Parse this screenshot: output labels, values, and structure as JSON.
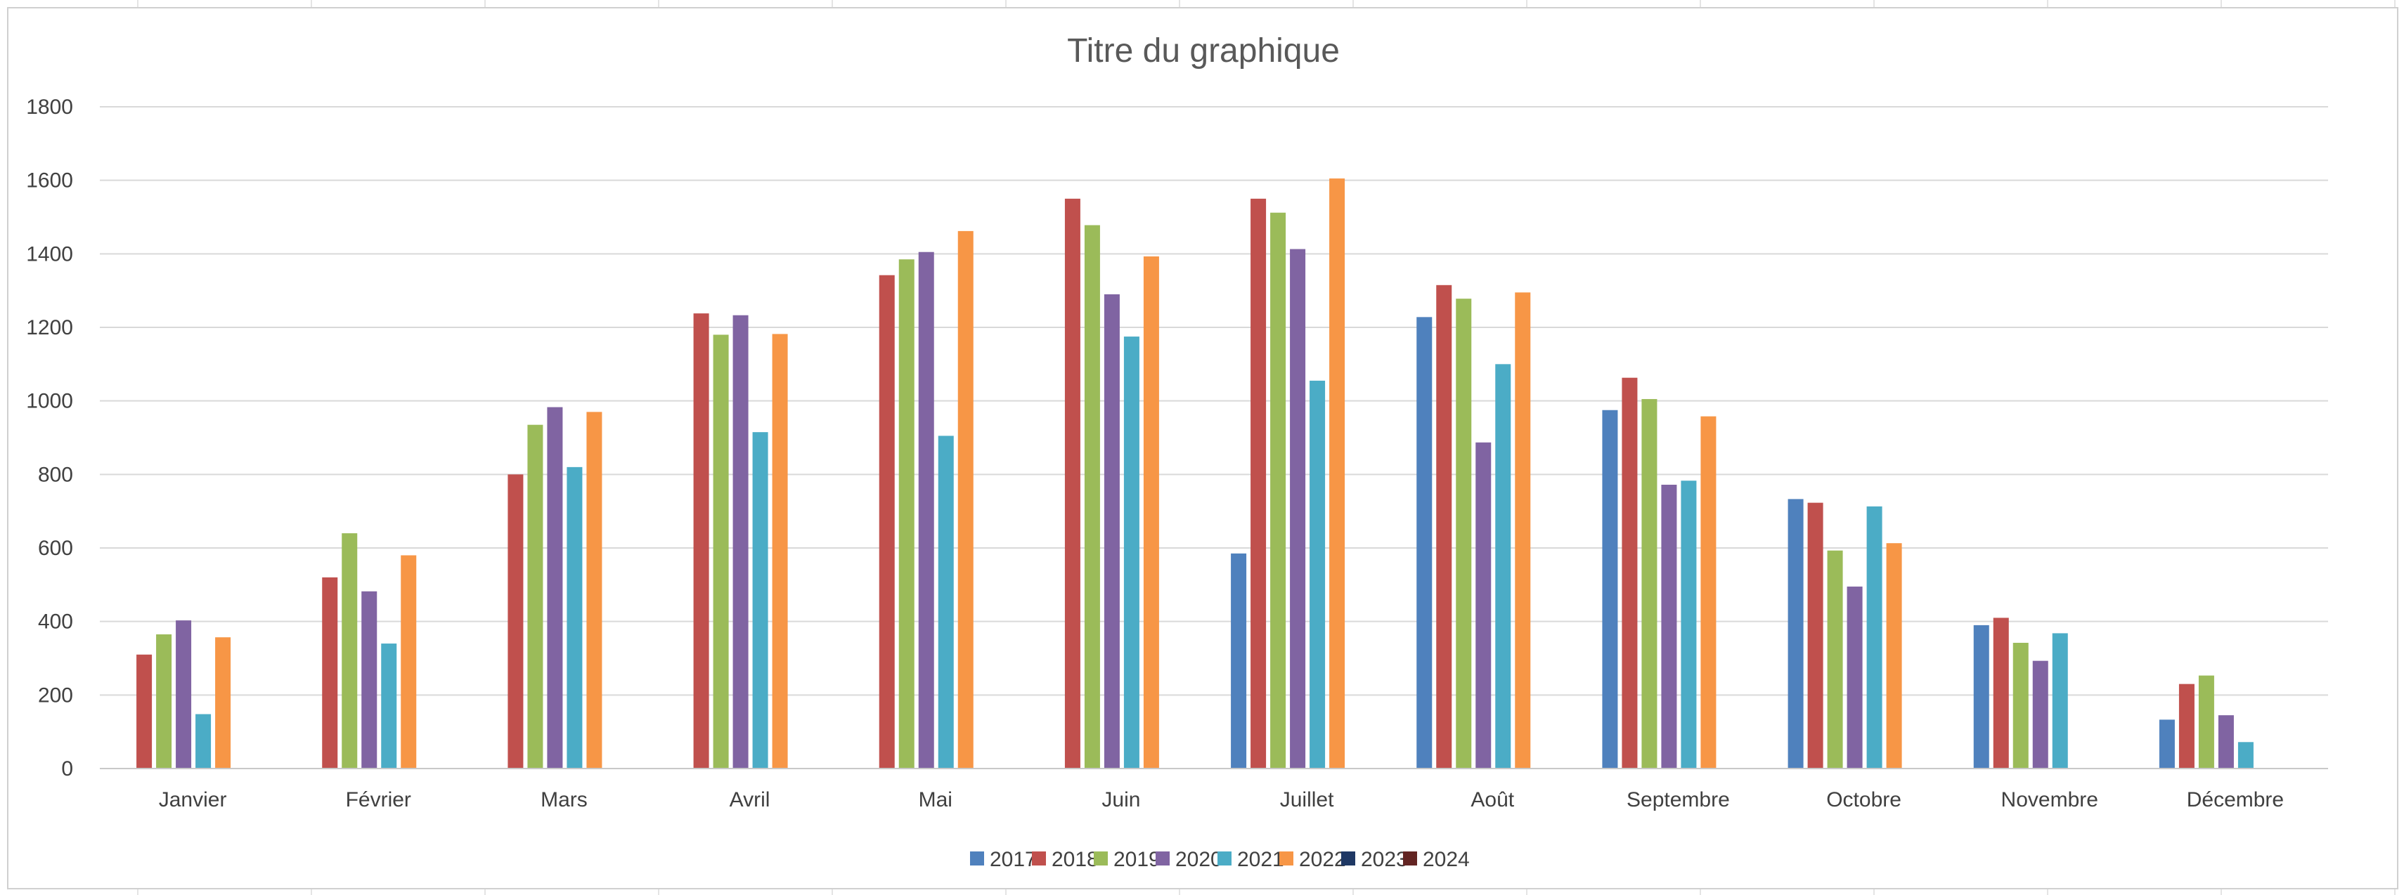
{
  "chart_data": {
    "type": "bar",
    "title": "Titre du graphique",
    "xlabel": "",
    "ylabel": "",
    "ylim": [
      0,
      1800
    ],
    "yticks": [
      0,
      200,
      400,
      600,
      800,
      1000,
      1200,
      1400,
      1600,
      1800
    ],
    "grid": true,
    "legend_position": "bottom",
    "categories": [
      "Janvier",
      "Février",
      "Mars",
      "Avril",
      "Mai",
      "Juin",
      "Juillet",
      "Août",
      "Septembre",
      "Octobre",
      "Novembre",
      "Décembre"
    ],
    "series": [
      {
        "name": "2017",
        "color": "#4F81BD",
        "values": [
          null,
          null,
          null,
          null,
          null,
          null,
          585,
          1228,
          975,
          733,
          390,
          133
        ]
      },
      {
        "name": "2018",
        "color": "#C0504D",
        "values": [
          310,
          520,
          800,
          1238,
          1342,
          1550,
          1550,
          1315,
          1063,
          723,
          410,
          230
        ]
      },
      {
        "name": "2019",
        "color": "#9BBB59",
        "values": [
          365,
          640,
          935,
          1180,
          1385,
          1478,
          1512,
          1278,
          1005,
          593,
          342,
          253
        ]
      },
      {
        "name": "2020",
        "color": "#8064A2",
        "values": [
          403,
          482,
          983,
          1233,
          1405,
          1290,
          1413,
          887,
          772,
          495,
          293,
          145
        ]
      },
      {
        "name": "2021",
        "color": "#4BACC6",
        "values": [
          148,
          340,
          820,
          915,
          905,
          1175,
          1055,
          1100,
          783,
          713,
          368,
          72
        ]
      },
      {
        "name": "2022",
        "color": "#F79646",
        "values": [
          357,
          580,
          970,
          1182,
          1462,
          1393,
          1605,
          1295,
          958,
          613,
          null,
          null
        ]
      },
      {
        "name": "2023",
        "color": "#1F3864",
        "values": [
          null,
          null,
          null,
          null,
          null,
          null,
          null,
          null,
          null,
          null,
          null,
          null
        ]
      },
      {
        "name": "2024",
        "color": "#632523",
        "values": [
          null,
          null,
          null,
          null,
          null,
          null,
          null,
          null,
          null,
          null,
          null,
          null
        ]
      }
    ]
  }
}
